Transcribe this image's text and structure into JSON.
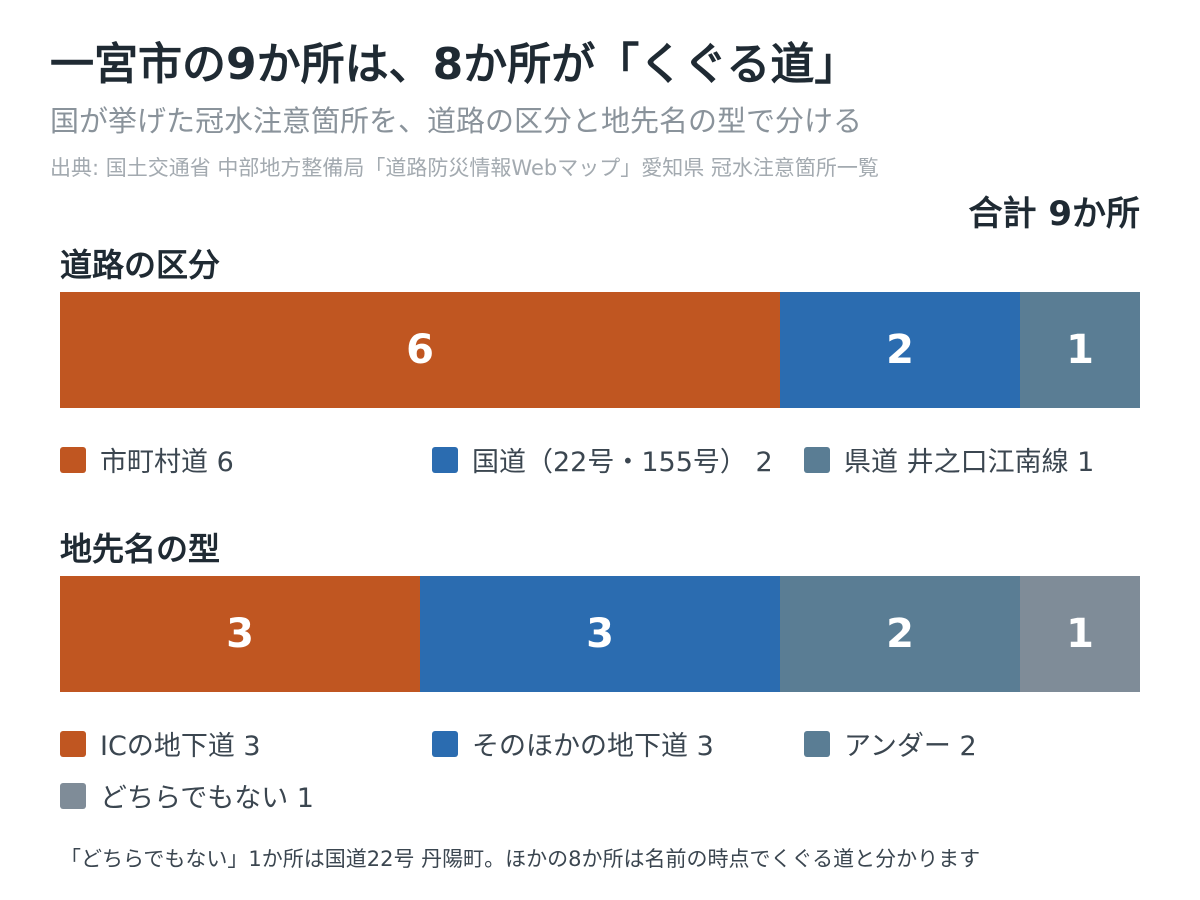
{
  "header": {
    "title": "一宮市の9か所は、8か所が「くぐる道」",
    "subtitle": "国が挙げた冠水注意箇所を、道路の区分と地先名の型で分ける",
    "source": "出典: 国土交通省 中部地方整備局「道路防災情報Webマップ」愛知県 冠水注意箇所一覧",
    "total": "合計 9か所"
  },
  "chart_data": [
    {
      "type": "bar",
      "stacked": true,
      "orientation": "horizontal",
      "title": "道路の区分",
      "total": 9,
      "series": [
        {
          "name": "市町村道",
          "value": 6,
          "legend": "市町村道 6",
          "color": "#c05621"
        },
        {
          "name": "国道（22号・155号）",
          "value": 2,
          "legend": "国道（22号・155号） 2",
          "color": "#2b6cb0"
        },
        {
          "name": "県道 井之口江南線",
          "value": 1,
          "legend": "県道 井之口江南線 1",
          "color": "#5a7d94"
        }
      ]
    },
    {
      "type": "bar",
      "stacked": true,
      "orientation": "horizontal",
      "title": "地先名の型",
      "total": 9,
      "series": [
        {
          "name": "ICの地下道",
          "value": 3,
          "legend": "ICの地下道 3",
          "color": "#c05621"
        },
        {
          "name": "そのほかの地下道",
          "value": 3,
          "legend": "そのほかの地下道 3",
          "color": "#2b6cb0"
        },
        {
          "name": "アンダー",
          "value": 2,
          "legend": "アンダー 2",
          "color": "#5a7d94"
        },
        {
          "name": "どちらでもない",
          "value": 1,
          "legend": "どちらでもない 1",
          "color": "#7f8c98"
        }
      ]
    }
  ],
  "footnote": "「どちらでもない」1か所は国道22号 丹陽町。ほかの8か所は名前の時点でくぐる道と分かります"
}
